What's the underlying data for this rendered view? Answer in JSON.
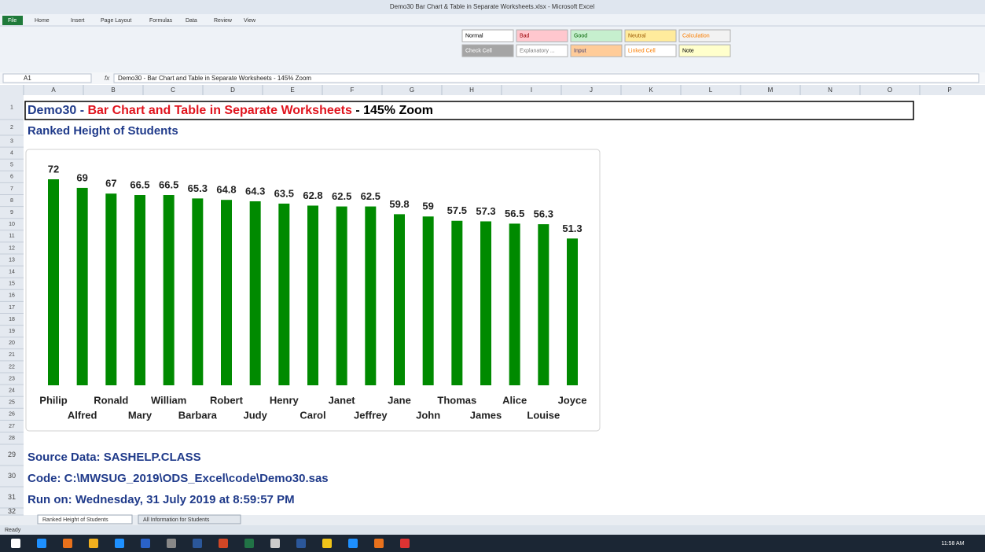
{
  "title_bar": "Demo30 Bar Chart & Table in Separate Worksheets.xlsx - Microsoft Excel",
  "ribbon_tabs": [
    "File",
    "Home",
    "Insert",
    "Page Layout",
    "Formulas",
    "Data",
    "Review",
    "View"
  ],
  "cell_styles": [
    "Normal",
    "Bad",
    "Good",
    "Neutral",
    "Calculation",
    "Check Cell",
    "Explanatory ...",
    "Input",
    "Linked Cell",
    "Note"
  ],
  "name_box": "A1",
  "formula": "Demo30 - Bar Chart and Table in Separate Worksheets - 145% Zoom",
  "columns": [
    "A",
    "B",
    "C",
    "D",
    "E",
    "F",
    "G",
    "H",
    "I",
    "J",
    "K",
    "L",
    "M",
    "N",
    "O",
    "P"
  ],
  "rows": [
    1,
    2,
    3,
    4,
    5,
    6,
    7,
    8,
    9,
    10,
    11,
    12,
    13,
    14,
    15,
    16,
    17,
    18,
    19,
    20,
    21,
    22,
    23,
    24,
    25,
    26,
    27,
    28,
    29,
    30,
    31,
    32
  ],
  "cells": {
    "a1": [
      "Demo30 - ",
      "Bar Chart and Table in Separate Worksheets",
      " - 145% Zoom"
    ],
    "a2": "Ranked Height of Students",
    "a29": "Source Data: SASHELP.CLASS",
    "a30": "Code: C:\\MWSUG_2019\\ODS_Excel\\code\\Demo30.sas",
    "a31": "Run on: Wednesday, 31 July 2019 at 8:59:57 PM"
  },
  "sheet_tabs": [
    "Ranked Height of Students",
    "All Information for Students"
  ],
  "status": "Ready",
  "clock": "11:58 AM",
  "chart_data": {
    "type": "bar",
    "color": "#008a00",
    "categories": [
      "Philip",
      "Alfred",
      "Ronald",
      "Mary",
      "William",
      "Barbara",
      "Robert",
      "Judy",
      "Henry",
      "Carol",
      "Janet",
      "Jeffrey",
      "Jane",
      "John",
      "Thomas",
      "James",
      "Alice",
      "Louise",
      "Joyce"
    ],
    "values": [
      72,
      69,
      67,
      66.5,
      66.5,
      65.3,
      64.8,
      64.3,
      63.5,
      62.8,
      62.5,
      62.5,
      59.8,
      59,
      57.5,
      57.3,
      56.5,
      56.3,
      51.3
    ]
  }
}
